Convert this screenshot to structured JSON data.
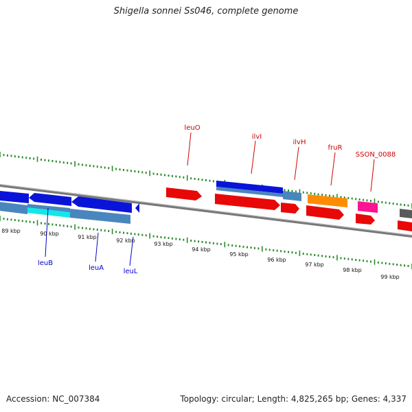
{
  "title": "Shigella sonnei Ss046, complete genome",
  "footer": {
    "accession": "Accession: NC_007384",
    "stats": "Topology: circular; Length: 4,825,265 bp; Genes: 4,337"
  },
  "colors": {
    "forward_label": "#cc0000",
    "reverse_label": "#0000cc",
    "tick": "#2a8a2a",
    "backbone": "#777777"
  },
  "axis": {
    "unit": "kbp",
    "labels": [
      "89 kbp",
      "90 kbp",
      "91 kbp",
      "92 kbp",
      "93 kbp",
      "94 kbp",
      "95 kbp",
      "96 kbp",
      "97 kbp",
      "98 kbp",
      "99 kbp"
    ]
  },
  "gene_labels": [
    {
      "name": "leuO",
      "strand": "forward"
    },
    {
      "name": "ilvI",
      "strand": "forward"
    },
    {
      "name": "ilvH",
      "strand": "forward"
    },
    {
      "name": "fruR",
      "strand": "forward"
    },
    {
      "name": "SSON_0088",
      "strand": "forward"
    },
    {
      "name": "leuB",
      "strand": "reverse"
    },
    {
      "name": "leuA",
      "strand": "reverse"
    },
    {
      "name": "leuL",
      "strand": "reverse"
    }
  ]
}
